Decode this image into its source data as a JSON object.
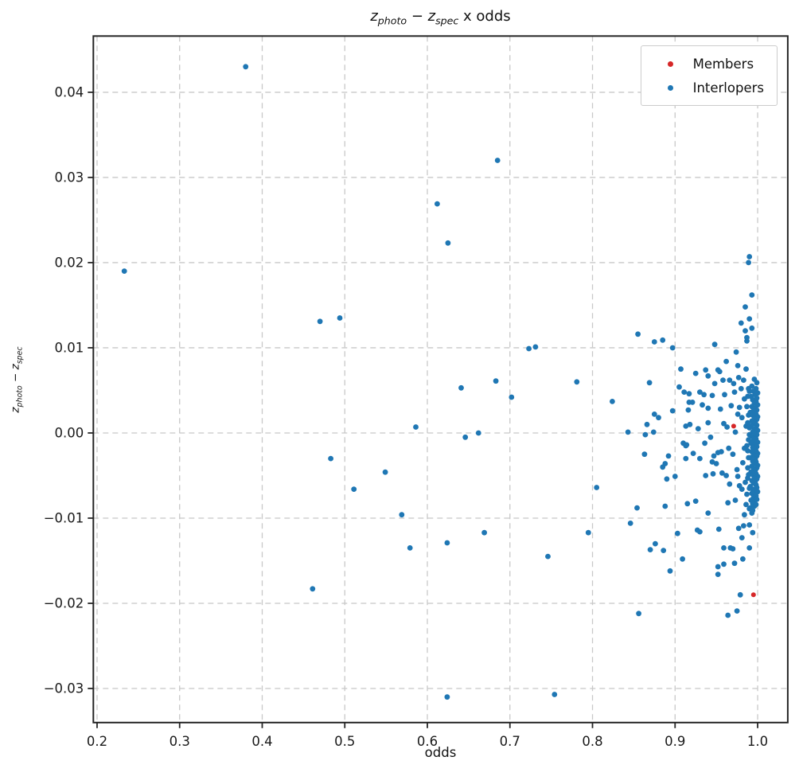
{
  "title": {
    "var1": "z",
    "sub1": "photo",
    "operator": " − ",
    "var2": "z",
    "sub2": "spec",
    "suffix": " x odds"
  },
  "ylabel_parts": {
    "var1": "z",
    "sub1": "photo",
    "operator": " − ",
    "var2": "z",
    "sub2": "spec"
  },
  "xlabel": "odds",
  "legend": {
    "position": "upper right",
    "items": [
      {
        "label": "Members",
        "color": "#d62728"
      },
      {
        "label": "Interlopers",
        "color": "#1f77b4"
      }
    ]
  },
  "colors": {
    "background": "#ffffff",
    "spine": "#262626",
    "grid": "#c8c8c8",
    "tick_label": "#1a1a1a",
    "members": "#d62728",
    "interlopers": "#1f77b4"
  },
  "chart_data": {
    "type": "scatter",
    "title": "z_photo − z_spec x odds",
    "xlabel": "odds",
    "ylabel": "z_photo − z_spec",
    "grid": "dashed",
    "legend_position": "upper right",
    "xlim": [
      0.1955,
      1.0365
    ],
    "ylim": [
      -0.034,
      0.0466
    ],
    "x_ticks": [
      0.2,
      0.3,
      0.4,
      0.5,
      0.6,
      0.7,
      0.8,
      0.9,
      1.0
    ],
    "x_tick_labels": [
      "0.2",
      "0.3",
      "0.4",
      "0.5",
      "0.6",
      "0.7",
      "0.8",
      "0.9",
      "1.0"
    ],
    "y_ticks": [
      0.04,
      0.03,
      0.02,
      0.01,
      0.0,
      -0.01,
      -0.02,
      -0.03
    ],
    "y_tick_labels": [
      "0.04",
      "0.03",
      "0.02",
      "0.01",
      "0.00",
      "−0.01",
      "−0.02",
      "−0.03"
    ],
    "series": [
      {
        "name": "Interlopers",
        "color": "#1f77b4",
        "marker_radius": 3.4,
        "points": [
          [
            0.233,
            0.019
          ],
          [
            0.38,
            0.043
          ],
          [
            0.461,
            -0.0183
          ],
          [
            0.47,
            0.0131
          ],
          [
            0.483,
            -0.003
          ],
          [
            0.494,
            0.0135
          ],
          [
            0.511,
            -0.0066
          ],
          [
            0.549,
            -0.0046
          ],
          [
            0.569,
            -0.0096
          ],
          [
            0.579,
            -0.0135
          ],
          [
            0.586,
            0.0007
          ],
          [
            0.612,
            0.0269
          ],
          [
            0.624,
            -0.0129
          ],
          [
            0.624,
            -0.031
          ],
          [
            0.625,
            0.0223
          ],
          [
            0.641,
            0.0053
          ],
          [
            0.646,
            -0.0005
          ],
          [
            0.662,
            0.0
          ],
          [
            0.669,
            -0.0117
          ],
          [
            0.683,
            0.0061
          ],
          [
            0.685,
            0.032
          ],
          [
            0.702,
            0.0042
          ],
          [
            0.723,
            0.0099
          ],
          [
            0.731,
            0.0101
          ],
          [
            0.746,
            -0.0145
          ],
          [
            0.754,
            -0.0307
          ],
          [
            0.781,
            0.006
          ],
          [
            0.795,
            -0.0117
          ],
          [
            0.805,
            -0.0064
          ],
          [
            0.824,
            0.0037
          ],
          [
            0.843,
            0.0001
          ],
          [
            0.846,
            -0.0106
          ],
          [
            0.854,
            -0.0088
          ],
          [
            0.855,
            0.0116
          ],
          [
            0.856,
            -0.0212
          ],
          [
            0.863,
            -0.0025
          ],
          [
            0.864,
            -0.0002
          ],
          [
            0.866,
            0.001
          ],
          [
            0.869,
            0.0059
          ],
          [
            0.87,
            -0.0137
          ],
          [
            0.874,
            0.0001
          ],
          [
            0.875,
            0.0107
          ],
          [
            0.875,
            0.0022
          ],
          [
            0.876,
            -0.013
          ],
          [
            0.88,
            0.0018
          ],
          [
            0.885,
            0.0109
          ],
          [
            0.885,
            -0.004
          ],
          [
            0.886,
            -0.0138
          ],
          [
            0.888,
            -0.0036
          ],
          [
            0.888,
            -0.0086
          ],
          [
            0.89,
            -0.0054
          ],
          [
            0.892,
            -0.0027
          ],
          [
            0.894,
            -0.0162
          ],
          [
            0.897,
            0.01
          ],
          [
            0.897,
            0.0026
          ],
          [
            0.9,
            -0.0051
          ],
          [
            0.903,
            -0.0118
          ],
          [
            0.905,
            0.0054
          ],
          [
            0.907,
            0.0075
          ],
          [
            0.909,
            -0.0148
          ],
          [
            0.91,
            -0.0012
          ],
          [
            0.911,
            0.0048
          ],
          [
            0.913,
            0.0008
          ],
          [
            0.913,
            -0.0015
          ],
          [
            0.913,
            -0.003
          ],
          [
            0.914,
            -0.0014
          ],
          [
            0.915,
            -0.0083
          ],
          [
            0.916,
            0.0027
          ],
          [
            0.917,
            0.0046
          ],
          [
            0.917,
            0.0036
          ],
          [
            0.918,
            0.001
          ],
          [
            0.921,
            0.0036
          ],
          [
            0.922,
            -0.0024
          ],
          [
            0.925,
            0.007
          ],
          [
            0.925,
            -0.008
          ],
          [
            0.927,
            -0.0114
          ],
          [
            0.928,
            0.0005
          ],
          [
            0.93,
            0.0048
          ],
          [
            0.93,
            -0.003
          ],
          [
            0.93,
            -0.0116
          ],
          [
            0.933,
            0.0033
          ],
          [
            0.935,
            0.0045
          ],
          [
            0.936,
            -0.0012
          ],
          [
            0.937,
            0.0074
          ],
          [
            0.937,
            -0.005
          ],
          [
            0.94,
            0.0067
          ],
          [
            0.94,
            0.0029
          ],
          [
            0.94,
            0.0012
          ],
          [
            0.94,
            -0.0094
          ],
          [
            0.943,
            -0.0005
          ],
          [
            0.945,
            0.0044
          ],
          [
            0.945,
            -0.0034
          ],
          [
            0.946,
            -0.0048
          ],
          [
            0.947,
            -0.0027
          ],
          [
            0.948,
            0.0104
          ],
          [
            0.948,
            0.0058
          ],
          [
            0.95,
            -0.0036
          ],
          [
            0.952,
            0.0074
          ],
          [
            0.952,
            -0.0023
          ],
          [
            0.952,
            -0.0157
          ],
          [
            0.952,
            -0.0166
          ],
          [
            0.953,
            -0.0113
          ],
          [
            0.954,
            0.0072
          ],
          [
            0.955,
            0.0028
          ],
          [
            0.956,
            -0.0022
          ],
          [
            0.957,
            -0.0047
          ],
          [
            0.958,
            0.0062
          ],
          [
            0.959,
            0.0011
          ],
          [
            0.959,
            -0.0135
          ],
          [
            0.959,
            -0.0154
          ],
          [
            0.96,
            0.0045
          ],
          [
            0.962,
            0.0084
          ],
          [
            0.962,
            -0.005
          ],
          [
            0.963,
            0.0007
          ],
          [
            0.964,
            -0.0082
          ],
          [
            0.964,
            -0.0214
          ],
          [
            0.965,
            -0.0018
          ],
          [
            0.966,
            0.0062
          ],
          [
            0.966,
            -0.006
          ],
          [
            0.967,
            -0.0135
          ],
          [
            0.968,
            0.0032
          ],
          [
            0.97,
            -0.0025
          ],
          [
            0.97,
            -0.0136
          ],
          [
            0.971,
            0.0058
          ],
          [
            0.972,
            0.0048
          ],
          [
            0.972,
            -0.0153
          ],
          [
            0.973,
            0.0001
          ],
          [
            0.973,
            -0.0079
          ],
          [
            0.974,
            0.0095
          ],
          [
            0.975,
            -0.0043
          ],
          [
            0.975,
            -0.0209
          ],
          [
            0.976,
            0.0079
          ],
          [
            0.976,
            0.0022
          ],
          [
            0.976,
            -0.0051
          ],
          [
            0.977,
            0.0065
          ],
          [
            0.977,
            -0.0112
          ],
          [
            0.978,
            0.003
          ],
          [
            0.978,
            -0.0062
          ],
          [
            0.979,
            -0.019
          ],
          [
            0.98,
            0.0129
          ],
          [
            0.98,
            0.0052
          ],
          [
            0.981,
            0.0018
          ],
          [
            0.981,
            -0.0066
          ],
          [
            0.981,
            -0.0123
          ],
          [
            0.982,
            -0.0035
          ],
          [
            0.982,
            -0.0148
          ],
          [
            0.983,
            0.0062
          ],
          [
            0.983,
            -0.0109
          ],
          [
            0.984,
            0.004
          ],
          [
            0.984,
            -0.0018
          ],
          [
            0.984,
            -0.0096
          ],
          [
            0.985,
            0.0148
          ],
          [
            0.985,
            0.012
          ],
          [
            0.985,
            -0.0058
          ],
          [
            0.986,
            0.0075
          ],
          [
            0.986,
            0.0008
          ],
          [
            0.986,
            -0.0084
          ],
          [
            0.987,
            0.0108
          ],
          [
            0.987,
            0.0112
          ],
          [
            0.989,
            0.02
          ],
          [
            0.99,
            0.0207
          ],
          [
            0.99,
            0.0134
          ],
          [
            0.99,
            -0.0089
          ],
          [
            0.99,
            -0.0108
          ],
          [
            0.99,
            -0.0135
          ],
          [
            0.991,
            -0.0088
          ],
          [
            0.993,
            0.0162
          ],
          [
            0.993,
            0.0123
          ],
          [
            0.993,
            -0.0094
          ],
          [
            0.994,
            -0.0091
          ],
          [
            0.994,
            -0.0117
          ],
          [
            0.996,
            -0.0086
          ],
          [
            0.996,
            0.0063
          ],
          [
            0.999,
            0.0059
          ],
          [
            0.993,
            0.0055
          ],
          [
            0.998,
            0.0052
          ],
          [
            0.995,
            0.0049
          ],
          [
            1.0,
            0.0047
          ],
          [
            0.997,
            0.0045
          ],
          [
            0.992,
            0.0043
          ],
          [
            0.999,
            0.0041
          ],
          [
            0.994,
            0.0039
          ],
          [
            0.998,
            0.0037
          ],
          [
            0.996,
            0.0035
          ],
          [
            1.0,
            0.0033
          ],
          [
            0.993,
            0.0031
          ],
          [
            0.997,
            0.0029
          ],
          [
            0.999,
            0.0027
          ],
          [
            0.995,
            0.0026
          ],
          [
            0.991,
            0.0024
          ],
          [
            0.998,
            0.0022
          ],
          [
            0.994,
            0.0021
          ],
          [
            1.0,
            0.0019
          ],
          [
            0.996,
            0.0017
          ],
          [
            0.999,
            0.0016
          ],
          [
            0.993,
            0.0014
          ],
          [
            0.997,
            0.0012
          ],
          [
            0.995,
            0.0011
          ],
          [
            0.999,
            0.0009
          ],
          [
            0.992,
            0.0008
          ],
          [
            0.998,
            0.0006
          ],
          [
            0.996,
            0.0004
          ],
          [
            1.0,
            0.0003
          ],
          [
            0.994,
            0.0001
          ],
          [
            0.997,
            -0.0001
          ],
          [
            0.999,
            -0.0002
          ],
          [
            0.993,
            -0.0004
          ],
          [
            0.996,
            -0.0006
          ],
          [
            0.998,
            -0.0007
          ],
          [
            0.995,
            -0.0009
          ],
          [
            1.0,
            -0.0011
          ],
          [
            0.992,
            -0.0012
          ],
          [
            0.997,
            -0.0014
          ],
          [
            0.999,
            -0.0016
          ],
          [
            0.994,
            -0.0017
          ],
          [
            0.996,
            -0.0019
          ],
          [
            0.998,
            -0.0021
          ],
          [
            0.993,
            -0.0022
          ],
          [
            1.0,
            -0.0024
          ],
          [
            0.995,
            -0.0026
          ],
          [
            0.999,
            -0.0027
          ],
          [
            0.991,
            -0.0029
          ],
          [
            0.997,
            -0.0031
          ],
          [
            0.994,
            -0.0033
          ],
          [
            0.998,
            -0.0034
          ],
          [
            0.996,
            -0.0036
          ],
          [
            1.0,
            -0.0038
          ],
          [
            0.993,
            -0.0039
          ],
          [
            0.999,
            -0.0041
          ],
          [
            0.995,
            -0.0043
          ],
          [
            0.997,
            -0.0044
          ],
          [
            0.992,
            -0.0046
          ],
          [
            0.998,
            -0.0048
          ],
          [
            0.994,
            -0.0049
          ],
          [
            1.0,
            -0.0051
          ],
          [
            0.996,
            -0.0053
          ],
          [
            0.999,
            -0.0054
          ],
          [
            0.993,
            -0.0056
          ],
          [
            0.997,
            -0.0058
          ],
          [
            0.995,
            -0.0059
          ],
          [
            0.998,
            -0.0061
          ],
          [
            0.991,
            -0.0063
          ],
          [
            0.999,
            -0.0064
          ],
          [
            0.994,
            -0.0066
          ],
          [
            0.996,
            -0.0068
          ],
          [
            1.0,
            -0.0069
          ],
          [
            0.993,
            -0.0071
          ],
          [
            0.997,
            -0.0073
          ],
          [
            0.998,
            -0.0074
          ],
          [
            0.995,
            -0.0076
          ],
          [
            0.999,
            -0.0078
          ],
          [
            0.992,
            -0.0079
          ],
          [
            0.996,
            -0.0081
          ],
          [
            0.994,
            -0.0083
          ],
          [
            0.998,
            -0.0084
          ],
          [
            0.989,
            -0.0029
          ],
          [
            0.988,
            -0.0053
          ],
          [
            0.99,
            0.0049
          ],
          [
            0.988,
            0.0012
          ],
          [
            0.989,
            -0.0008
          ],
          [
            0.99,
            -0.0065
          ],
          [
            0.988,
            -0.0021
          ],
          [
            0.987,
            0.0031
          ],
          [
            0.989,
            0.0052
          ],
          [
            0.988,
            -0.0041
          ],
          [
            0.99,
            -0.0002
          ],
          [
            0.987,
            -0.0072
          ],
          [
            0.989,
            0.0021
          ],
          [
            0.988,
            0.0043
          ],
          [
            0.99,
            0.0006
          ],
          [
            0.987,
            -0.0015
          ],
          [
            0.989,
            -0.0049
          ]
        ]
      },
      {
        "name": "Members",
        "color": "#d62728",
        "marker_radius": 3.0,
        "points": [
          [
            0.971,
            0.0008
          ],
          [
            0.995,
            -0.019
          ]
        ]
      }
    ]
  }
}
